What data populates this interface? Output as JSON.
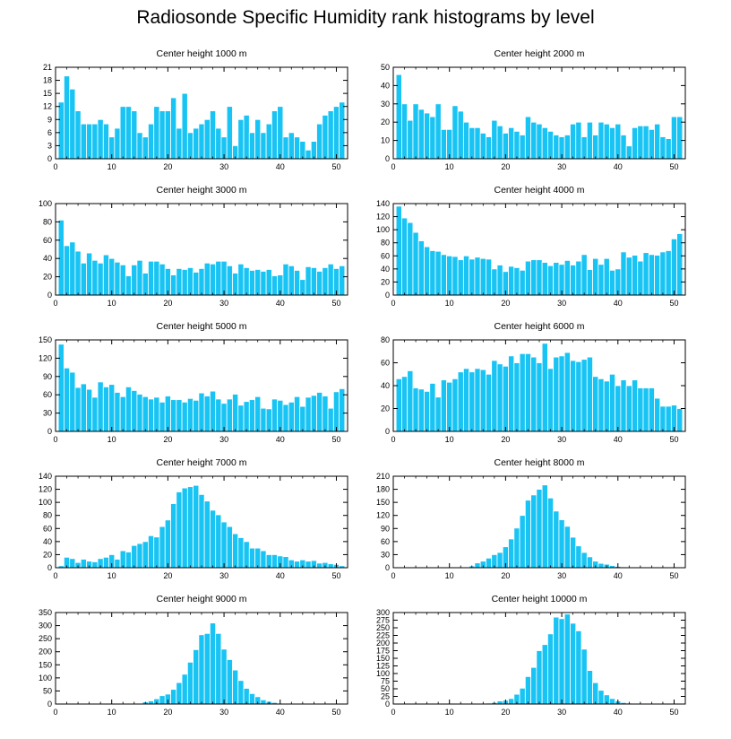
{
  "title": "Radiosonde Specific Humidity rank histograms by level",
  "colors": {
    "bar": "#18c4f4",
    "bar_edge": "#ffffff",
    "axis": "#000000"
  },
  "chart_data": [
    {
      "type": "bar",
      "title": "Center height 1000 m",
      "xlabel": "",
      "ylabel": "",
      "xlim": [
        0,
        52
      ],
      "ylim": [
        0,
        21
      ],
      "xticks": [
        0,
        10,
        20,
        30,
        40,
        50
      ],
      "yticks": [
        0,
        3,
        6,
        9,
        12,
        15,
        18,
        21
      ],
      "x": [
        1,
        2,
        3,
        4,
        5,
        6,
        7,
        8,
        9,
        10,
        11,
        12,
        13,
        14,
        15,
        16,
        17,
        18,
        19,
        20,
        21,
        22,
        23,
        24,
        25,
        26,
        27,
        28,
        29,
        30,
        31,
        32,
        33,
        34,
        35,
        36,
        37,
        38,
        39,
        40,
        41,
        42,
        43,
        44,
        45,
        46,
        47,
        48,
        49,
        50,
        51
      ],
      "values": [
        13,
        19,
        16,
        11,
        8,
        8,
        8,
        9,
        8,
        5,
        7,
        12,
        12,
        11,
        6,
        5,
        8,
        12,
        11,
        11,
        14,
        7,
        15,
        6,
        7,
        8,
        9,
        11,
        7,
        5,
        12,
        3,
        9,
        10,
        6,
        9,
        6,
        8,
        11,
        12,
        5,
        6,
        5,
        4,
        2,
        4,
        8,
        10,
        11,
        12,
        13
      ]
    },
    {
      "type": "bar",
      "title": "Center height 2000 m",
      "xlabel": "",
      "ylabel": "",
      "xlim": [
        0,
        52
      ],
      "ylim": [
        0,
        50
      ],
      "xticks": [
        0,
        10,
        20,
        30,
        40,
        50
      ],
      "yticks": [
        0,
        10,
        20,
        30,
        40,
        50
      ],
      "x": [
        1,
        2,
        3,
        4,
        5,
        6,
        7,
        8,
        9,
        10,
        11,
        12,
        13,
        14,
        15,
        16,
        17,
        18,
        19,
        20,
        21,
        22,
        23,
        24,
        25,
        26,
        27,
        28,
        29,
        30,
        31,
        32,
        33,
        34,
        35,
        36,
        37,
        38,
        39,
        40,
        41,
        42,
        43,
        44,
        45,
        46,
        47,
        48,
        49,
        50,
        51
      ],
      "values": [
        46,
        30,
        21,
        30,
        27,
        25,
        23,
        30,
        16,
        16,
        29,
        26,
        20,
        17,
        17,
        14,
        12,
        21,
        18,
        14,
        17,
        15,
        13,
        23,
        20,
        19,
        17,
        15,
        13,
        12,
        13,
        19,
        20,
        12,
        20,
        13,
        20,
        19,
        17,
        19,
        13,
        7,
        17,
        18,
        18,
        16,
        19,
        12,
        11,
        23,
        23
      ]
    },
    {
      "type": "bar",
      "title": "Center height 3000 m",
      "xlabel": "",
      "ylabel": "",
      "xlim": [
        0,
        52
      ],
      "ylim": [
        0,
        100
      ],
      "xticks": [
        0,
        10,
        20,
        30,
        40,
        50
      ],
      "yticks": [
        0,
        20,
        40,
        60,
        80,
        100
      ],
      "x": [
        1,
        2,
        3,
        4,
        5,
        6,
        7,
        8,
        9,
        10,
        11,
        12,
        13,
        14,
        15,
        16,
        17,
        18,
        19,
        20,
        21,
        22,
        23,
        24,
        25,
        26,
        27,
        28,
        29,
        30,
        31,
        32,
        33,
        34,
        35,
        36,
        37,
        38,
        39,
        40,
        41,
        42,
        43,
        44,
        45,
        46,
        47,
        48,
        49,
        50,
        51
      ],
      "values": [
        82,
        54,
        58,
        48,
        35,
        46,
        38,
        35,
        44,
        40,
        36,
        33,
        21,
        33,
        38,
        24,
        37,
        37,
        34,
        29,
        22,
        29,
        28,
        30,
        25,
        29,
        35,
        34,
        37,
        37,
        32,
        24,
        34,
        30,
        27,
        28,
        26,
        28,
        21,
        22,
        34,
        32,
        27,
        17,
        31,
        30,
        26,
        30,
        34,
        29,
        32
      ]
    },
    {
      "type": "bar",
      "title": "Center height 4000 m",
      "xlabel": "",
      "ylabel": "",
      "xlim": [
        0,
        52
      ],
      "ylim": [
        0,
        140
      ],
      "xticks": [
        0,
        10,
        20,
        30,
        40,
        50
      ],
      "yticks": [
        0,
        20,
        40,
        60,
        80,
        100,
        120,
        140
      ],
      "x": [
        1,
        2,
        3,
        4,
        5,
        6,
        7,
        8,
        9,
        10,
        11,
        12,
        13,
        14,
        15,
        16,
        17,
        18,
        19,
        20,
        21,
        22,
        23,
        24,
        25,
        26,
        27,
        28,
        29,
        30,
        31,
        32,
        33,
        34,
        35,
        36,
        37,
        38,
        39,
        40,
        41,
        42,
        43,
        44,
        45,
        46,
        47,
        48,
        49,
        50,
        51
      ],
      "values": [
        136,
        118,
        111,
        96,
        83,
        74,
        68,
        67,
        62,
        60,
        59,
        54,
        60,
        55,
        58,
        56,
        55,
        40,
        46,
        36,
        44,
        42,
        38,
        52,
        54,
        54,
        50,
        45,
        50,
        47,
        53,
        46,
        52,
        62,
        39,
        56,
        47,
        56,
        38,
        40,
        66,
        58,
        61,
        52,
        65,
        62,
        61,
        66,
        68,
        86,
        94
      ]
    },
    {
      "type": "bar",
      "title": "Center height 5000 m",
      "xlabel": "",
      "ylabel": "",
      "xlim": [
        0,
        52
      ],
      "ylim": [
        0,
        150
      ],
      "xticks": [
        0,
        10,
        20,
        30,
        40,
        50
      ],
      "yticks": [
        0,
        30,
        60,
        90,
        120,
        150
      ],
      "x": [
        1,
        2,
        3,
        4,
        5,
        6,
        7,
        8,
        9,
        10,
        11,
        12,
        13,
        14,
        15,
        16,
        17,
        18,
        19,
        20,
        21,
        22,
        23,
        24,
        25,
        26,
        27,
        28,
        29,
        30,
        31,
        32,
        33,
        34,
        35,
        36,
        37,
        38,
        39,
        40,
        41,
        42,
        43,
        44,
        45,
        46,
        47,
        48,
        49,
        50,
        51
      ],
      "values": [
        143,
        104,
        97,
        72,
        78,
        69,
        56,
        81,
        73,
        77,
        64,
        57,
        73,
        67,
        61,
        57,
        53,
        56,
        48,
        58,
        52,
        52,
        48,
        54,
        51,
        63,
        58,
        66,
        53,
        46,
        53,
        61,
        43,
        49,
        52,
        57,
        38,
        37,
        53,
        51,
        44,
        48,
        57,
        41,
        56,
        59,
        64,
        58,
        38,
        65,
        70
      ]
    },
    {
      "type": "bar",
      "title": "Center height 6000 m",
      "xlabel": "",
      "ylabel": "",
      "xlim": [
        0,
        52
      ],
      "ylim": [
        0,
        80
      ],
      "xticks": [
        0,
        10,
        20,
        30,
        40,
        50
      ],
      "yticks": [
        0,
        20,
        40,
        60,
        80
      ],
      "x": [
        1,
        2,
        3,
        4,
        5,
        6,
        7,
        8,
        9,
        10,
        11,
        12,
        13,
        14,
        15,
        16,
        17,
        18,
        19,
        20,
        21,
        22,
        23,
        24,
        25,
        26,
        27,
        28,
        29,
        30,
        31,
        32,
        33,
        34,
        35,
        36,
        37,
        38,
        39,
        40,
        41,
        42,
        43,
        44,
        45,
        46,
        47,
        48,
        49,
        50,
        51
      ],
      "values": [
        46,
        48,
        53,
        38,
        37,
        35,
        42,
        30,
        45,
        43,
        46,
        52,
        55,
        52,
        55,
        54,
        50,
        62,
        59,
        57,
        66,
        60,
        68,
        68,
        65,
        60,
        77,
        55,
        65,
        66,
        69,
        62,
        61,
        63,
        65,
        48,
        46,
        44,
        50,
        40,
        45,
        40,
        45,
        38,
        38,
        38,
        29,
        22,
        22,
        23,
        20
      ]
    },
    {
      "type": "bar",
      "title": "Center height 7000 m",
      "xlabel": "",
      "ylabel": "",
      "xlim": [
        0,
        52
      ],
      "ylim": [
        0,
        140
      ],
      "xticks": [
        0,
        10,
        20,
        30,
        40,
        50
      ],
      "yticks": [
        0,
        20,
        40,
        60,
        80,
        100,
        120,
        140
      ],
      "x": [
        1,
        2,
        3,
        4,
        5,
        6,
        7,
        8,
        9,
        10,
        11,
        12,
        13,
        14,
        15,
        16,
        17,
        18,
        19,
        20,
        21,
        22,
        23,
        24,
        25,
        26,
        27,
        28,
        29,
        30,
        31,
        32,
        33,
        34,
        35,
        36,
        37,
        38,
        39,
        40,
        41,
        42,
        43,
        44,
        45,
        46,
        47,
        48,
        49,
        50,
        51
      ],
      "values": [
        3,
        16,
        14,
        8,
        13,
        10,
        9,
        14,
        16,
        20,
        13,
        26,
        24,
        34,
        37,
        40,
        49,
        47,
        63,
        73,
        98,
        116,
        122,
        124,
        126,
        112,
        102,
        88,
        81,
        70,
        63,
        52,
        46,
        40,
        30,
        30,
        26,
        20,
        20,
        18,
        17,
        12,
        10,
        12,
        10,
        11,
        7,
        8,
        6,
        5,
        3
      ]
    },
    {
      "type": "bar",
      "title": "Center height 8000 m",
      "xlabel": "",
      "ylabel": "",
      "xlim": [
        0,
        52
      ],
      "ylim": [
        0,
        210
      ],
      "xticks": [
        0,
        10,
        20,
        30,
        40,
        50
      ],
      "yticks": [
        0,
        30,
        60,
        90,
        120,
        150,
        180,
        210
      ],
      "x": [
        1,
        2,
        3,
        4,
        5,
        6,
        7,
        8,
        9,
        10,
        11,
        12,
        13,
        14,
        15,
        16,
        17,
        18,
        19,
        20,
        21,
        22,
        23,
        24,
        25,
        26,
        27,
        28,
        29,
        30,
        31,
        32,
        33,
        34,
        35,
        36,
        37,
        38,
        39,
        40,
        41,
        42,
        43,
        44,
        45,
        46,
        47,
        48,
        49,
        50,
        51
      ],
      "values": [
        0,
        0,
        0,
        0,
        0,
        0,
        0,
        0,
        0,
        0,
        0,
        0,
        1,
        4,
        11,
        15,
        22,
        30,
        35,
        48,
        66,
        91,
        120,
        155,
        167,
        180,
        190,
        160,
        130,
        110,
        95,
        70,
        50,
        35,
        25,
        15,
        10,
        8,
        5,
        3,
        2,
        1,
        0,
        0,
        0,
        0,
        0,
        0,
        0,
        0,
        0
      ]
    },
    {
      "type": "bar",
      "title": "Center height 9000 m",
      "xlabel": "",
      "ylabel": "",
      "xlim": [
        0,
        52
      ],
      "ylim": [
        0,
        350
      ],
      "xticks": [
        0,
        10,
        20,
        30,
        40,
        50
      ],
      "yticks": [
        0,
        50,
        100,
        150,
        200,
        250,
        300,
        350
      ],
      "x": [
        1,
        2,
        3,
        4,
        5,
        6,
        7,
        8,
        9,
        10,
        11,
        12,
        13,
        14,
        15,
        16,
        17,
        18,
        19,
        20,
        21,
        22,
        23,
        24,
        25,
        26,
        27,
        28,
        29,
        30,
        31,
        32,
        33,
        34,
        35,
        36,
        37,
        38,
        39,
        40,
        41,
        42,
        43,
        44,
        45,
        46,
        47,
        48,
        49,
        50,
        51
      ],
      "values": [
        0,
        0,
        0,
        0,
        0,
        0,
        0,
        0,
        0,
        0,
        0,
        0,
        0,
        0,
        3,
        8,
        12,
        20,
        32,
        38,
        56,
        82,
        114,
        160,
        208,
        265,
        270,
        310,
        270,
        210,
        170,
        130,
        90,
        60,
        40,
        28,
        16,
        10,
        6,
        3,
        2,
        1,
        0,
        0,
        0,
        0,
        0,
        0,
        0,
        0,
        0
      ]
    },
    {
      "type": "bar",
      "title": "Center height 10000 m",
      "xlabel": "",
      "ylabel": "",
      "xlim": [
        0,
        52
      ],
      "ylim": [
        0,
        300
      ],
      "xticks": [
        0,
        10,
        20,
        30,
        40,
        50
      ],
      "yticks": [
        0,
        25,
        50,
        75,
        100,
        125,
        150,
        175,
        200,
        225,
        250,
        275,
        300
      ],
      "x": [
        1,
        2,
        3,
        4,
        5,
        6,
        7,
        8,
        9,
        10,
        11,
        12,
        13,
        14,
        15,
        16,
        17,
        18,
        19,
        20,
        21,
        22,
        23,
        24,
        25,
        26,
        27,
        28,
        29,
        30,
        31,
        32,
        33,
        34,
        35,
        36,
        37,
        38,
        39,
        40,
        41,
        42,
        43,
        44,
        45,
        46,
        47,
        48,
        49,
        50,
        51
      ],
      "values": [
        0,
        0,
        0,
        0,
        0,
        0,
        0,
        0,
        0,
        0,
        0,
        0,
        0,
        0,
        0,
        0,
        3,
        5,
        10,
        12,
        18,
        32,
        52,
        90,
        120,
        175,
        195,
        230,
        285,
        280,
        295,
        265,
        240,
        180,
        110,
        70,
        45,
        30,
        18,
        10,
        5,
        3,
        2,
        1,
        0,
        0,
        0,
        0,
        0,
        0,
        0
      ]
    }
  ]
}
